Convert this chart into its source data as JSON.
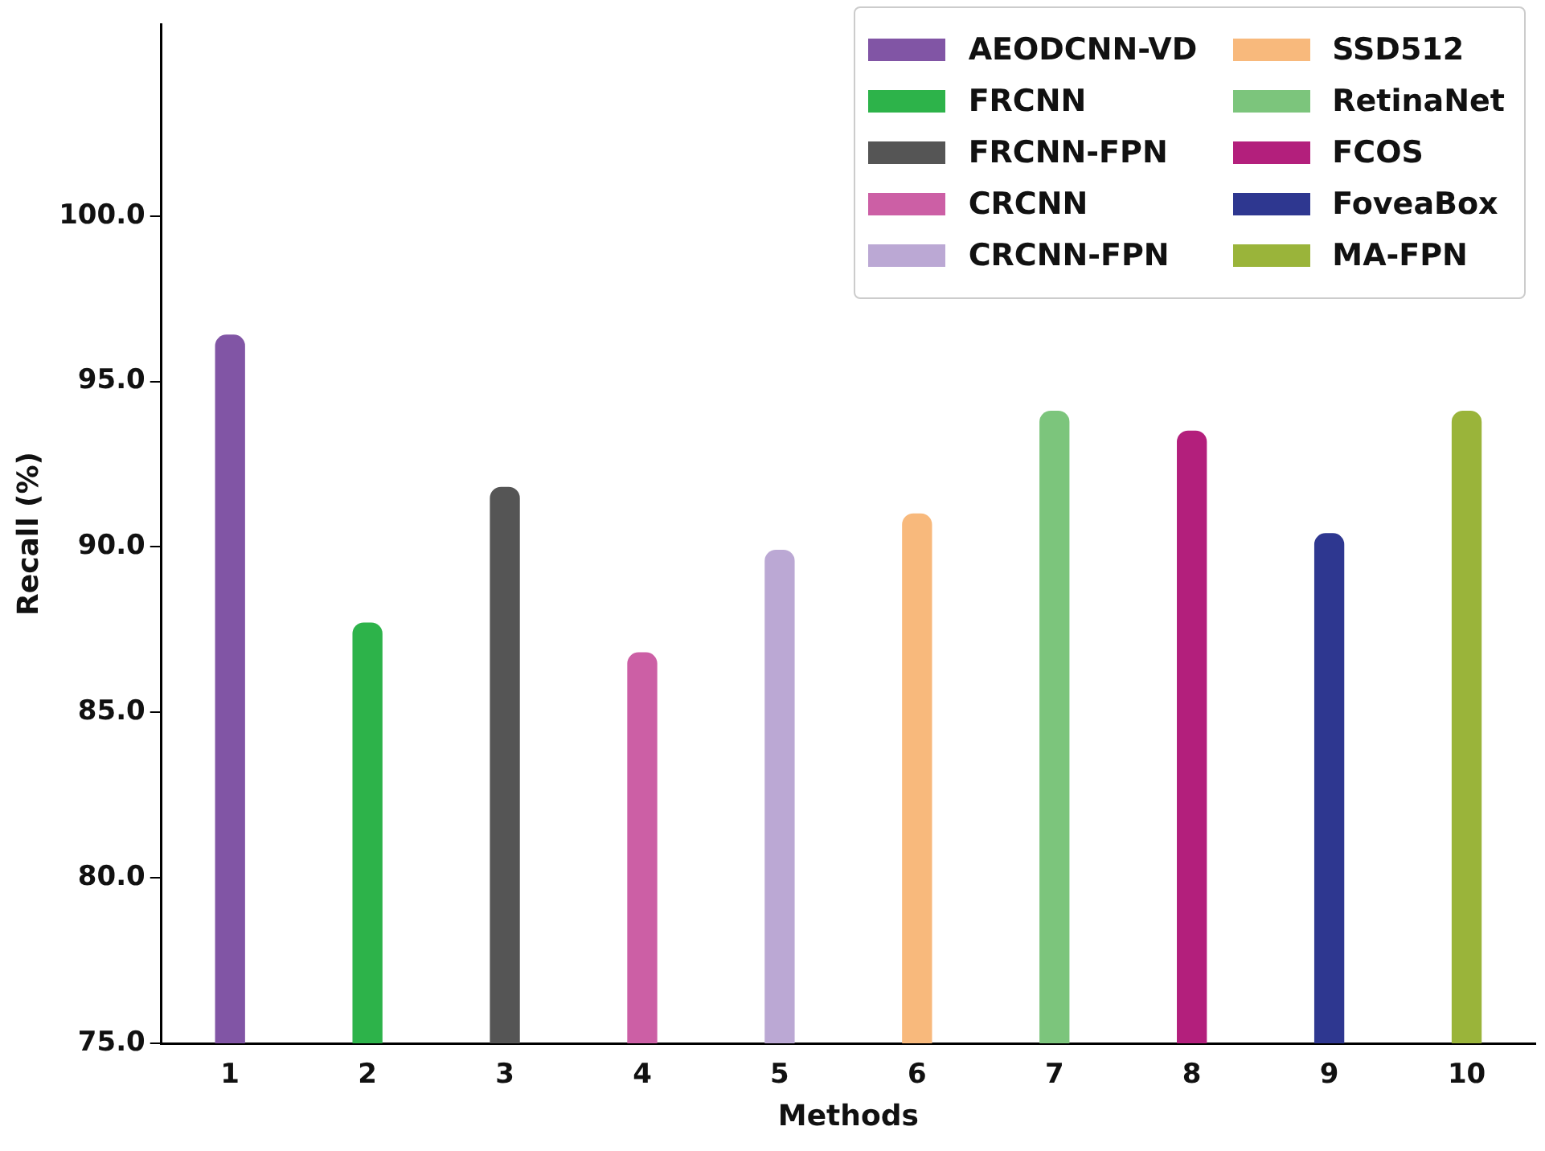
{
  "chart_data": {
    "type": "bar",
    "xlabel": "Methods",
    "ylabel": "Recall (%)",
    "categories": [
      "1",
      "2",
      "3",
      "4",
      "5",
      "6",
      "7",
      "8",
      "9",
      "10"
    ],
    "series": [
      {
        "name": "AEODCNN-VD",
        "color": "#8155a5",
        "values": [
          96.4,
          null,
          null,
          null,
          null,
          null,
          null,
          null,
          null,
          null
        ]
      },
      {
        "name": "FRCNN",
        "color": "#2db34a",
        "values": [
          null,
          87.7,
          null,
          null,
          null,
          null,
          null,
          null,
          null,
          null
        ]
      },
      {
        "name": "FRCNN-FPN",
        "color": "#555555",
        "values": [
          null,
          null,
          91.8,
          null,
          null,
          null,
          null,
          null,
          null,
          null
        ]
      },
      {
        "name": "CRCNN",
        "color": "#cc5fa5",
        "values": [
          null,
          null,
          null,
          86.8,
          null,
          null,
          null,
          null,
          null,
          null
        ]
      },
      {
        "name": "CRCNN-FPN",
        "color": "#bba8d4",
        "values": [
          null,
          null,
          null,
          null,
          89.9,
          null,
          null,
          null,
          null,
          null
        ]
      },
      {
        "name": "SSD512",
        "color": "#f8b97c",
        "values": [
          null,
          null,
          null,
          null,
          null,
          91.0,
          null,
          null,
          null,
          null
        ]
      },
      {
        "name": "RetinaNet",
        "color": "#7cc57c",
        "values": [
          null,
          null,
          null,
          null,
          null,
          null,
          94.1,
          null,
          null,
          null
        ]
      },
      {
        "name": "FCOS",
        "color": "#b31f7c",
        "values": [
          null,
          null,
          null,
          null,
          null,
          null,
          null,
          93.5,
          null,
          null
        ]
      },
      {
        "name": "FoveaBox",
        "color": "#2e3790",
        "values": [
          null,
          null,
          null,
          null,
          null,
          null,
          null,
          null,
          90.4,
          null
        ]
      },
      {
        "name": "MA-FPN",
        "color": "#9ab43a",
        "values": [
          null,
          null,
          null,
          null,
          null,
          null,
          null,
          null,
          null,
          94.1
        ]
      }
    ],
    "ylim": [
      75,
      105.8
    ],
    "yticks": [
      {
        "value": 75,
        "label": "75.0"
      },
      {
        "value": 80,
        "label": "80.0"
      },
      {
        "value": 85,
        "label": "85.0"
      },
      {
        "value": 90,
        "label": "90.0"
      },
      {
        "value": 95,
        "label": "95.0"
      },
      {
        "value": 100,
        "label": "100.0"
      }
    ],
    "grid": false,
    "legend": "top right"
  }
}
